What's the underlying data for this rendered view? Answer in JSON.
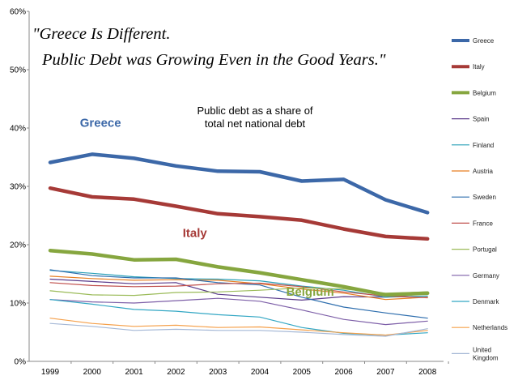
{
  "chart_data": {
    "type": "line",
    "quote_line1": "\"Greece Is Different.",
    "quote_line2": "Public Debt was Growing Even in the Good Years.\"",
    "subtitle_line1": "Public debt as a share of",
    "subtitle_line2": "total net national debt",
    "x": [
      "1999",
      "2000",
      "2001",
      "2002",
      "2003",
      "2004",
      "2005",
      "2006",
      "2007",
      "2008"
    ],
    "ylim": [
      0,
      60
    ],
    "yticks": [
      {
        "value": 0,
        "label": "0%"
      },
      {
        "value": 10,
        "label": "10%"
      },
      {
        "value": 20,
        "label": "20%"
      },
      {
        "value": 30,
        "label": "30%"
      },
      {
        "value": 40,
        "label": "40%"
      },
      {
        "value": 50,
        "label": "50%"
      },
      {
        "value": 60,
        "label": "60%"
      }
    ],
    "legend_position": "right",
    "series": [
      {
        "name": "Greece",
        "color": "#3c68a8",
        "width": "thick",
        "values": [
          34.1,
          35.5,
          34.8,
          33.5,
          32.6,
          32.5,
          30.9,
          31.2,
          27.7,
          25.5
        ]
      },
      {
        "name": "Italy",
        "color": "#a63a37",
        "width": "thick",
        "values": [
          29.7,
          28.2,
          27.8,
          26.6,
          25.3,
          24.8,
          24.2,
          22.7,
          21.4,
          21.0
        ]
      },
      {
        "name": "Belgium",
        "color": "#86a63f",
        "width": "thick",
        "values": [
          19.0,
          18.4,
          17.4,
          17.5,
          16.2,
          15.2,
          14.0,
          12.8,
          11.4,
          11.7
        ]
      },
      {
        "name": "Spain",
        "color": "#5a3a8a",
        "width": "thin",
        "values": [
          14.1,
          13.7,
          13.3,
          13.5,
          11.5,
          11.0,
          10.5,
          11.1,
          11.0,
          11.6
        ]
      },
      {
        "name": "Finland",
        "color": "#2aa0b8",
        "width": "thin",
        "values": [
          15.6,
          15.1,
          14.5,
          14.2,
          14.1,
          13.8,
          12.9,
          12.2,
          11.0,
          11.2
        ]
      },
      {
        "name": "Austria",
        "color": "#e67e22",
        "width": "thin",
        "values": [
          14.6,
          14.2,
          13.9,
          14.0,
          13.9,
          13.3,
          12.4,
          11.7,
          10.6,
          11.0
        ]
      },
      {
        "name": "Sweden",
        "color": "#2e6eae",
        "width": "thin",
        "values": [
          15.7,
          14.7,
          14.3,
          14.3,
          13.5,
          13.1,
          11.0,
          9.3,
          8.3,
          7.4
        ]
      },
      {
        "name": "France",
        "color": "#c0504d",
        "width": "thin",
        "values": [
          13.5,
          13.0,
          12.8,
          12.9,
          13.3,
          13.4,
          12.8,
          11.9,
          11.2,
          10.9
        ]
      },
      {
        "name": "Portugal",
        "color": "#9bbb59",
        "width": "thin",
        "values": [
          12.1,
          11.4,
          11.3,
          11.8,
          11.9,
          12.2,
          12.6,
          12.4,
          11.7,
          11.9
        ]
      },
      {
        "name": "Germany",
        "color": "#7d5fa8",
        "width": "thin",
        "values": [
          10.6,
          10.2,
          10.0,
          10.4,
          10.8,
          10.3,
          8.8,
          7.2,
          6.3,
          6.9
        ]
      },
      {
        "name": "Denmark",
        "color": "#33a7c4",
        "width": "thin",
        "values": [
          10.6,
          9.8,
          8.9,
          8.6,
          8.0,
          7.6,
          5.8,
          4.8,
          4.5,
          4.9
        ]
      },
      {
        "name": "Netherlands",
        "color": "#f5a04a",
        "width": "thin",
        "values": [
          7.4,
          6.5,
          6.0,
          6.2,
          5.8,
          5.9,
          5.4,
          4.9,
          4.5,
          5.3
        ]
      },
      {
        "name": "United Kingdom",
        "color": "#a5b8d6",
        "width": "thin",
        "values": [
          6.5,
          6.0,
          5.3,
          5.5,
          5.3,
          5.3,
          5.0,
          4.6,
          4.3,
          5.6
        ]
      }
    ],
    "annotations": [
      {
        "text": "Greece",
        "series": "Greece",
        "color": "#3c68a8"
      },
      {
        "text": "Italy",
        "series": "Italy",
        "color": "#a63a37"
      },
      {
        "text": "Belgium",
        "series": "Belgium",
        "color": "#86a63f"
      }
    ]
  }
}
